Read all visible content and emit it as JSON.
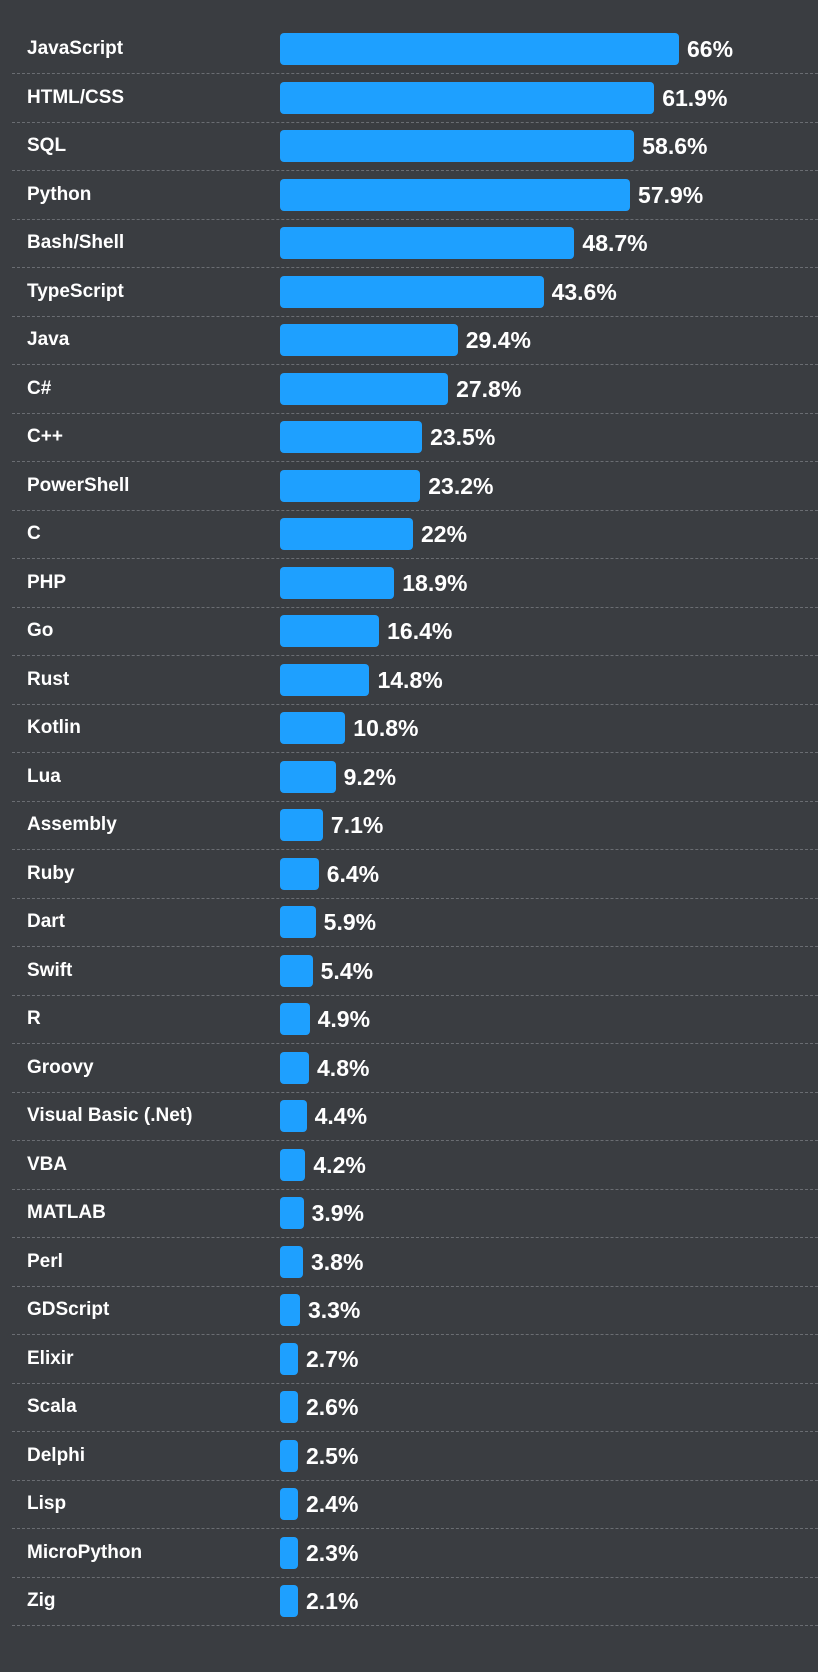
{
  "colors": {
    "background": "#3a3d41",
    "bar": "#1ea0ff",
    "text": "#ffffff",
    "divider": "#6a6d72"
  },
  "chart_data": {
    "type": "bar",
    "orientation": "horizontal",
    "title": "",
    "xlabel": "",
    "ylabel": "",
    "grid": false,
    "xlim": [
      0,
      66
    ],
    "value_suffix": "%",
    "categories": [
      "JavaScript",
      "HTML/CSS",
      "SQL",
      "Python",
      "Bash/Shell",
      "TypeScript",
      "Java",
      "C#",
      "C++",
      "PowerShell",
      "C",
      "PHP",
      "Go",
      "Rust",
      "Kotlin",
      "Lua",
      "Assembly",
      "Ruby",
      "Dart",
      "Swift",
      "R",
      "Groovy",
      "Visual Basic (.Net)",
      "VBA",
      "MATLAB",
      "Perl",
      "GDScript",
      "Elixir",
      "Scala",
      "Delphi",
      "Lisp",
      "MicroPython",
      "Zig"
    ],
    "values": [
      66,
      61.9,
      58.6,
      57.9,
      48.7,
      43.6,
      29.4,
      27.8,
      23.5,
      23.2,
      22,
      18.9,
      16.4,
      14.8,
      10.8,
      9.2,
      7.1,
      6.4,
      5.9,
      5.4,
      4.9,
      4.8,
      4.4,
      4.2,
      3.9,
      3.8,
      3.3,
      2.7,
      2.6,
      2.5,
      2.4,
      2.3,
      2.1
    ],
    "value_labels": [
      "66%",
      "61.9%",
      "58.6%",
      "57.9%",
      "48.7%",
      "43.6%",
      "29.4%",
      "27.8%",
      "23.5%",
      "23.2%",
      "22%",
      "18.9%",
      "16.4%",
      "14.8%",
      "10.8%",
      "9.2%",
      "7.1%",
      "6.4%",
      "5.9%",
      "5.4%",
      "4.9%",
      "4.8%",
      "4.4%",
      "4.2%",
      "3.9%",
      "3.8%",
      "3.3%",
      "2.7%",
      "2.6%",
      "2.5%",
      "2.4%",
      "2.3%",
      "2.1%"
    ]
  }
}
